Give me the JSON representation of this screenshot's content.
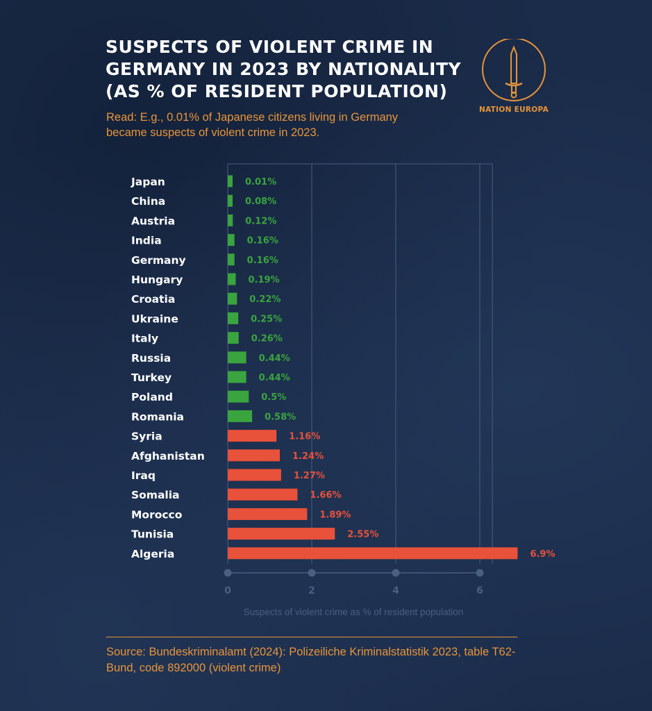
{
  "title": "Suspects of violent crime in Germany in 2023 by nationality (as % of resident population)",
  "subtitle": "Read: E.g., 0.01% of Japanese citizens living in Germany became suspects of violent crime in 2023.",
  "logo": {
    "text": "NATION EUROPA",
    "icon": "sword-icon"
  },
  "source": "Source: Bundeskriminalamt (2024): Polizeiliche Kriminalstatistik 2023, table T62-Bund, code 892000 (violent crime)",
  "colors": {
    "low": "#3aa43f",
    "high": "#e8513a",
    "accent": "#e8953a",
    "grid": "#4a5d80",
    "axis_label": "#4b5f82"
  },
  "chart_data": {
    "type": "bar",
    "orientation": "horizontal",
    "title": "Suspects of violent crime in Germany in 2023 by nationality (as % of resident population)",
    "xlabel": "Suspects of violent crime as % of resident population",
    "ylabel": "",
    "xlim": [
      0,
      6.3
    ],
    "xticks": [
      0,
      2,
      4,
      6
    ],
    "grid": true,
    "categories": [
      "Japan",
      "China",
      "Austria",
      "India",
      "Germany",
      "Hungary",
      "Croatia",
      "Ukraine",
      "Italy",
      "Russia",
      "Turkey",
      "Poland",
      "Romania",
      "Syria",
      "Afghanistan",
      "Iraq",
      "Somalia",
      "Morocco",
      "Tunisia",
      "Algeria"
    ],
    "values": [
      0.01,
      0.08,
      0.12,
      0.16,
      0.16,
      0.19,
      0.22,
      0.25,
      0.26,
      0.44,
      0.44,
      0.5,
      0.58,
      1.16,
      1.24,
      1.27,
      1.66,
      1.89,
      2.55,
      6.9
    ],
    "labels": [
      "0.01%",
      "0.08%",
      "0.12%",
      "0.16%",
      "0.16%",
      "0.19%",
      "0.22%",
      "0.25%",
      "0.26%",
      "0.44%",
      "0.44%",
      "0.5%",
      "0.58%",
      "1.16%",
      "1.24%",
      "1.27%",
      "1.66%",
      "1.89%",
      "2.55%",
      "6.9%"
    ],
    "color_group": [
      "low",
      "low",
      "low",
      "low",
      "low",
      "low",
      "low",
      "low",
      "low",
      "low",
      "low",
      "low",
      "low",
      "high",
      "high",
      "high",
      "high",
      "high",
      "high",
      "high"
    ]
  }
}
